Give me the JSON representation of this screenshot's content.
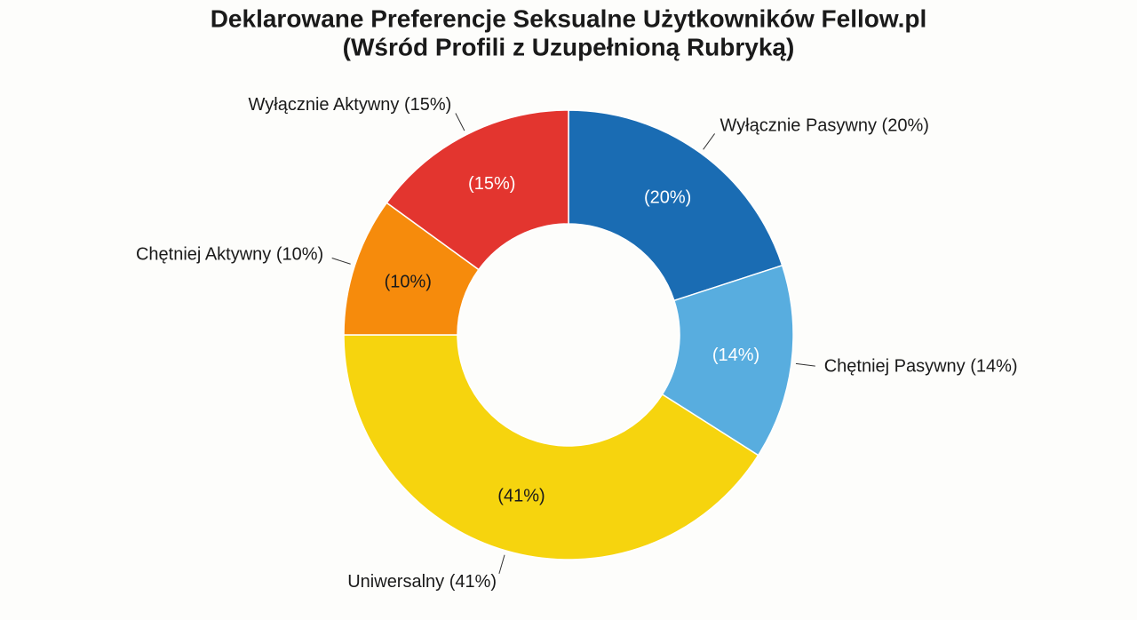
{
  "chart_data": {
    "type": "donut",
    "title": "Deklarowane Preferencje Seksualne Użytkowników Fellow.pl",
    "subtitle": "(Wśród Profili z Uzupełnioną Rubryką)",
    "categories": [
      "Wyłącznie Pasywny (20%)",
      "Chętniej Pasywny (14%)",
      "Uniwersalny (41%)",
      "Chętniej Aktywny (10%)",
      "Wyłącznie Aktywny (15%)"
    ],
    "values": [
      20,
      14,
      41,
      10,
      15
    ],
    "value_labels": [
      "(20%)",
      "(14%)",
      "(41%)",
      "(10%)",
      "(15%)"
    ],
    "colors": [
      "#1a6cb3",
      "#58addf",
      "#f6d40e",
      "#f68b0c",
      "#e3352f"
    ]
  }
}
